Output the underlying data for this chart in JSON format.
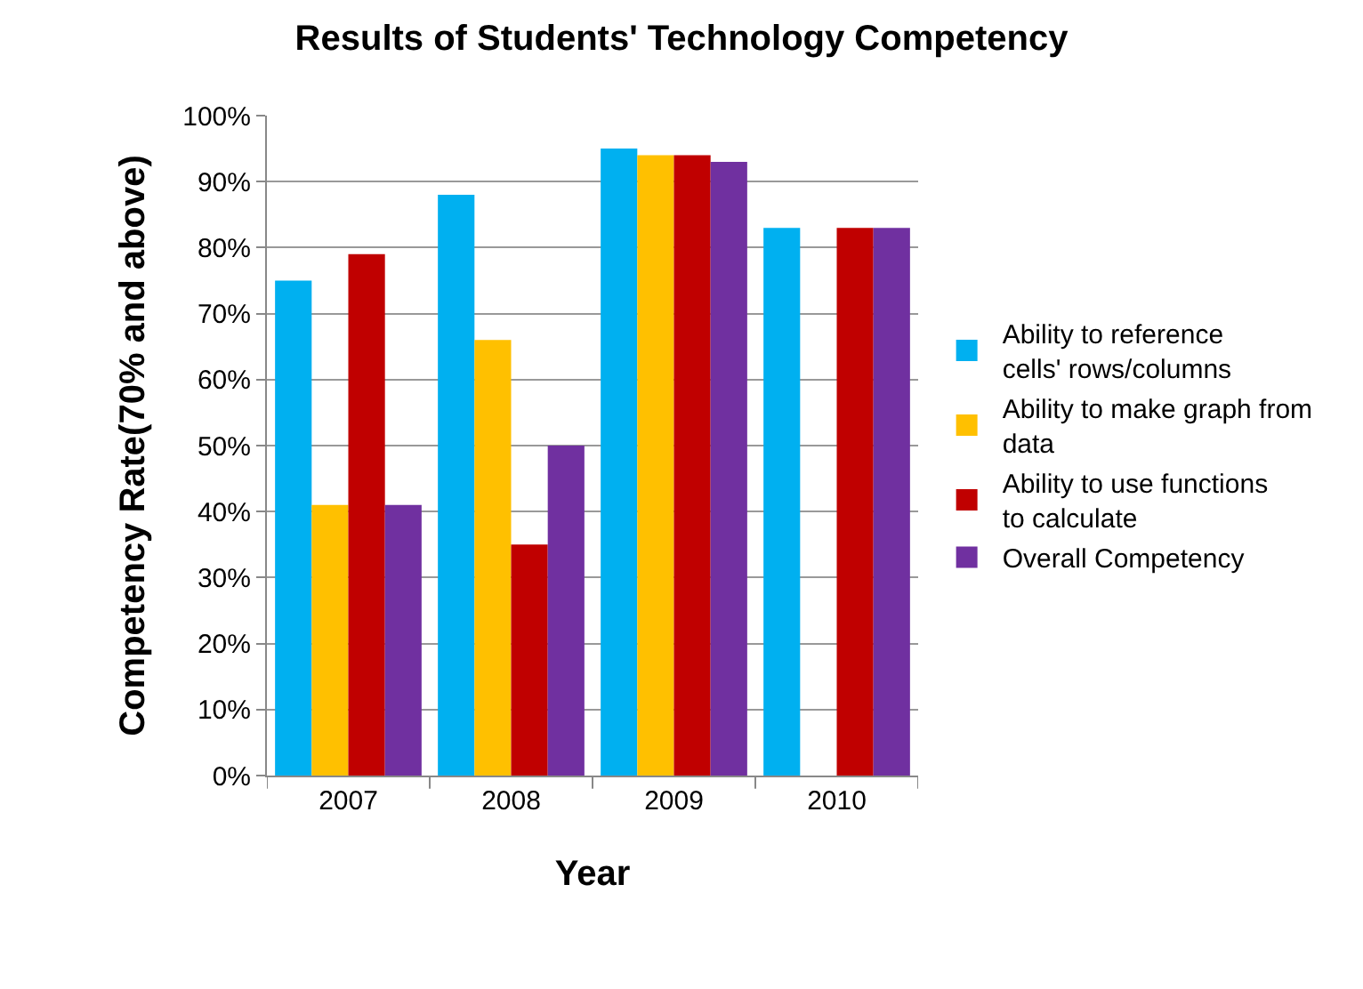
{
  "chart_data": {
    "type": "bar",
    "title": "Results of Students' Technology Competency",
    "xlabel": "Year",
    "ylabel": "Competency Rate(70% and above)",
    "categories": [
      "2007",
      "2008",
      "2009",
      "2010"
    ],
    "series": [
      {
        "name": "Ability to reference cells' rows/columns",
        "color": "#00b0f0",
        "values": [
          75,
          88,
          95,
          83
        ]
      },
      {
        "name": "Ability to make graph from data",
        "color": "#ffc000",
        "values": [
          41,
          66,
          94,
          null
        ]
      },
      {
        "name": "Ability to use functions to calculate",
        "color": "#c00000",
        "values": [
          79,
          35,
          94,
          83
        ]
      },
      {
        "name": "Overall Competency",
        "color": "#7030a0",
        "values": [
          41,
          50,
          93,
          83
        ]
      }
    ],
    "ylim": [
      0,
      100
    ],
    "yticks": [
      {
        "value": 0,
        "label": "0%"
      },
      {
        "value": 10,
        "label": "10%"
      },
      {
        "value": 20,
        "label": "20%"
      },
      {
        "value": 30,
        "label": "30%"
      },
      {
        "value": 40,
        "label": "40%"
      },
      {
        "value": 50,
        "label": "50%"
      },
      {
        "value": 60,
        "label": "60%"
      },
      {
        "value": 70,
        "label": "70%"
      },
      {
        "value": 80,
        "label": "80%"
      },
      {
        "value": 90,
        "label": "90%"
      },
      {
        "value": 100,
        "label": "100%"
      }
    ],
    "grid": "y",
    "legend": "right"
  }
}
